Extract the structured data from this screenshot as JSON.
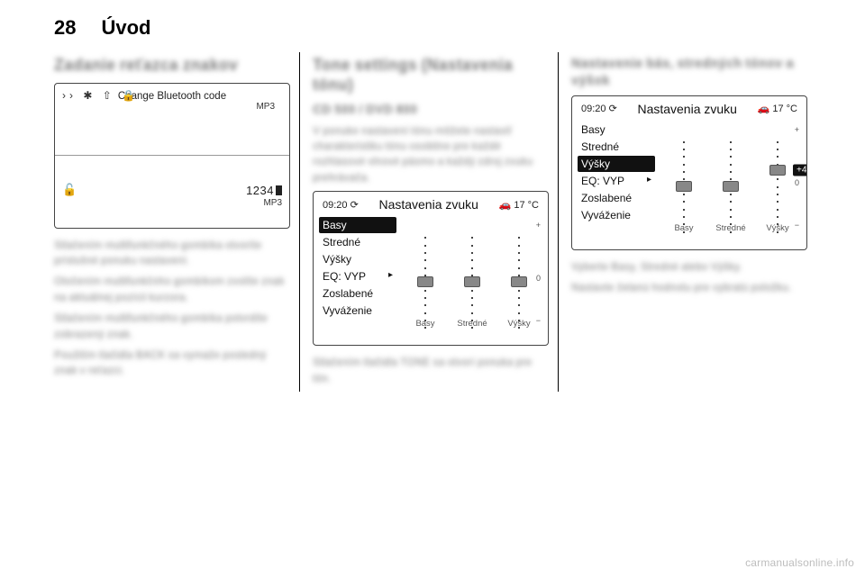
{
  "header": {
    "page_num": "28",
    "section": "Úvod"
  },
  "col1": {
    "heading": "Zadanie reťazca znakov",
    "lcd": {
      "icons": "›› ✱ ⇧ 🔒",
      "title_line": "Change Bluetooth code",
      "top_sub": "MP3",
      "lock_icon": "🔓",
      "code": "1234",
      "bottom_sub": "MP3"
    },
    "paras": [
      "Stlačením multifunkčného gombíka otvoríte príslušné ponuku nastavení.",
      "Otočením multifunkčnho gombíkom zvolíte znak na aktuálnej pozícii kurzora.",
      "Stlačením multifunkčného gombíka potvrdíte zobrazený znak.",
      "Použitím tlačidla BACK sa vymaže posledný znak v reťazci."
    ]
  },
  "col2": {
    "heading": "Tone settings (Nastavenia tónu)",
    "sub": "CD 500 / DVD 800",
    "intro": "V ponuke nastavení tónu môžete nastaviť charakteristiku tónu osobitne pre každé rozhlasové vlnové pásmo a každý zdroj zvuku prehrávača.",
    "panel": {
      "time": "09:20 ⟳",
      "title": "Nastavenia zvuku",
      "temp": "🚗 17 °C",
      "items": [
        {
          "label": "Basy",
          "selected": true,
          "arrow": false
        },
        {
          "label": "Stredné",
          "selected": false,
          "arrow": false
        },
        {
          "label": "Výšky",
          "selected": false,
          "arrow": false
        },
        {
          "label": "EQ:  VYP",
          "selected": false,
          "arrow": true
        },
        {
          "label": "Zoslabené",
          "selected": false,
          "arrow": false
        },
        {
          "label": "Vyváženie",
          "selected": false,
          "arrow": false
        }
      ],
      "sliders": [
        {
          "label": "Basy",
          "value_pct": 50
        },
        {
          "label": "Stredné",
          "value_pct": 50
        },
        {
          "label": "Výšky",
          "value_pct": 50
        }
      ],
      "scale": {
        "top": "+",
        "mid": "0",
        "bot": "−"
      }
    },
    "outro": "Stlačením tlačidla TONE sa otvorí ponuka pre tón."
  },
  "col3": {
    "heading": "Nastavenie bás, stredných tónov a výšok",
    "panel": {
      "time": "09:20 ⟳",
      "title": "Nastavenia zvuku",
      "temp": "🚗 17 °C",
      "items": [
        {
          "label": "Basy",
          "selected": false,
          "arrow": false
        },
        {
          "label": "Stredné",
          "selected": false,
          "arrow": false
        },
        {
          "label": "Výšky",
          "selected": true,
          "arrow": false
        },
        {
          "label": "EQ: VYP",
          "selected": false,
          "arrow": true
        },
        {
          "label": "Zoslabené",
          "selected": false,
          "arrow": false
        },
        {
          "label": "Vyváženie",
          "selected": false,
          "arrow": false
        }
      ],
      "sliders": [
        {
          "label": "Basy",
          "value_pct": 50
        },
        {
          "label": "Stredné",
          "value_pct": 50
        },
        {
          "label": "Výšky",
          "value_pct": 32,
          "badge": "+4"
        }
      ],
      "scale": {
        "top": "+",
        "mid": "0",
        "bot": "−"
      }
    },
    "paras": [
      "Vyberte Basy, Stredné alebo Výšky.",
      "Nastavte želanú hodnotu pre vybratú položku."
    ]
  },
  "watermark": "carmanualsonline.info"
}
